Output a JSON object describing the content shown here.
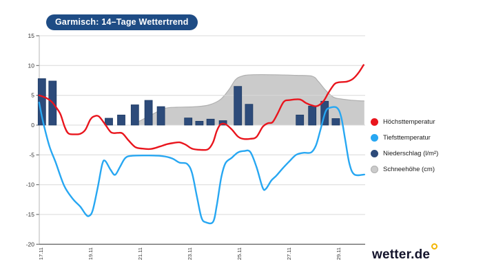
{
  "title_badge": "Garmisch: 14–Tage Wettertrend",
  "badge_color": "#1e4c85",
  "logo": {
    "text": "wetter.de",
    "ring_color": "#f2b400"
  },
  "legend": [
    {
      "label": "Höchsttemperatur",
      "color": "#e9151d"
    },
    {
      "label": "Tiefsttemperatur",
      "color": "#27a7f2"
    },
    {
      "label": "Niederschlag (l/m²)",
      "color": "#2d4b7a"
    },
    {
      "label": "Schneehöhe (cm)",
      "color": "#cbcbcb",
      "border": "#b0b0b0"
    }
  ],
  "chart_data": {
    "type": "line+bar+area",
    "x_axis": {
      "labels": [
        "17.11",
        "19.11",
        "21.11",
        "23.11",
        "25.11",
        "27.11",
        "29.11"
      ],
      "label_days": [
        17,
        19,
        21,
        23,
        25,
        27,
        29
      ]
    },
    "y_axis": {
      "min": -20,
      "max": 15,
      "ticks": [
        15,
        10,
        5,
        0,
        -5,
        -10,
        -15,
        -20
      ]
    },
    "grid": "horizontal-only",
    "legend_position": "right",
    "series": [
      {
        "name": "Schneehöhe (cm)",
        "key": "snow-area-series",
        "type": "area",
        "color": "#cbcbcb",
        "border": "#b0b0b0",
        "points": [
          [
            20.65,
            0
          ],
          [
            21.0,
            0.7
          ],
          [
            21.5,
            1.8
          ],
          [
            22.0,
            2.8
          ],
          [
            22.5,
            3.0
          ],
          [
            23.3,
            3.1
          ],
          [
            23.8,
            3.4
          ],
          [
            24.25,
            4.3
          ],
          [
            24.6,
            6.0
          ],
          [
            24.85,
            7.6
          ],
          [
            25.1,
            8.2
          ],
          [
            25.5,
            8.45
          ],
          [
            26.5,
            8.45
          ],
          [
            27.3,
            8.35
          ],
          [
            27.95,
            8.2
          ],
          [
            28.2,
            7.3
          ],
          [
            28.5,
            5.8
          ],
          [
            28.8,
            4.7
          ],
          [
            29.1,
            4.4
          ],
          [
            29.6,
            4.15
          ],
          [
            30.05,
            4.05
          ]
        ]
      },
      {
        "name": "Niederschlag (l/m²)",
        "key": "precip-bars-series",
        "type": "bar",
        "color": "#2d4b7a",
        "border": "#1d3a64",
        "points": [
          [
            17.05,
            7.8
          ],
          [
            17.48,
            7.4
          ],
          [
            19.75,
            1.15
          ],
          [
            20.25,
            1.7
          ],
          [
            20.8,
            3.4
          ],
          [
            21.35,
            4.15
          ],
          [
            21.85,
            3.1
          ],
          [
            22.95,
            1.2
          ],
          [
            23.4,
            0.65
          ],
          [
            23.85,
            1.0
          ],
          [
            24.35,
            0.75
          ],
          [
            24.95,
            6.5
          ],
          [
            25.4,
            3.5
          ],
          [
            27.45,
            1.7
          ],
          [
            27.95,
            3.2
          ],
          [
            28.45,
            4.0
          ],
          [
            28.9,
            1.1
          ]
        ]
      },
      {
        "name": "Höchsttemperatur",
        "key": "max-temp-line-series",
        "type": "line",
        "color": "#e9151d",
        "points": [
          [
            16.94,
            5.0
          ],
          [
            17.2,
            4.6
          ],
          [
            17.45,
            3.9
          ],
          [
            17.62,
            3.0
          ],
          [
            17.8,
            1.8
          ],
          [
            17.97,
            -0.3
          ],
          [
            18.12,
            -1.4
          ],
          [
            18.35,
            -1.55
          ],
          [
            18.6,
            -1.45
          ],
          [
            18.8,
            -0.8
          ],
          [
            19.0,
            0.9
          ],
          [
            19.15,
            1.45
          ],
          [
            19.35,
            1.45
          ],
          [
            19.62,
            0.0
          ],
          [
            19.85,
            -1.25
          ],
          [
            20.1,
            -1.3
          ],
          [
            20.3,
            -1.4
          ],
          [
            20.55,
            -2.6
          ],
          [
            20.82,
            -3.7
          ],
          [
            21.1,
            -3.95
          ],
          [
            21.45,
            -4.0
          ],
          [
            21.8,
            -3.6
          ],
          [
            22.1,
            -3.2
          ],
          [
            22.35,
            -3.0
          ],
          [
            22.6,
            -2.9
          ],
          [
            22.85,
            -3.3
          ],
          [
            23.1,
            -3.95
          ],
          [
            23.45,
            -4.15
          ],
          [
            23.75,
            -4.05
          ],
          [
            23.95,
            -2.9
          ],
          [
            24.1,
            -1.0
          ],
          [
            24.25,
            0.1
          ],
          [
            24.45,
            0.15
          ],
          [
            24.7,
            -0.7
          ],
          [
            24.95,
            -1.9
          ],
          [
            25.15,
            -2.3
          ],
          [
            25.45,
            -2.3
          ],
          [
            25.7,
            -2.0
          ],
          [
            25.95,
            -0.3
          ],
          [
            26.15,
            0.3
          ],
          [
            26.35,
            0.5
          ],
          [
            26.55,
            1.9
          ],
          [
            26.8,
            3.9
          ],
          [
            27.05,
            4.2
          ],
          [
            27.45,
            4.3
          ],
          [
            27.7,
            3.7
          ],
          [
            27.95,
            3.3
          ],
          [
            28.15,
            3.2
          ],
          [
            28.4,
            4.0
          ],
          [
            28.6,
            5.4
          ],
          [
            28.85,
            6.9
          ],
          [
            29.05,
            7.2
          ],
          [
            29.35,
            7.3
          ],
          [
            29.6,
            7.8
          ],
          [
            29.82,
            8.8
          ],
          [
            30.02,
            10.1
          ]
        ]
      },
      {
        "name": "Tiefsttemperatur",
        "key": "min-temp-line-series",
        "type": "line",
        "color": "#27a7f2",
        "points": [
          [
            16.94,
            3.8
          ],
          [
            17.1,
            0.5
          ],
          [
            17.35,
            -3.5
          ],
          [
            17.6,
            -6.2
          ],
          [
            17.95,
            -10.2
          ],
          [
            18.3,
            -12.4
          ],
          [
            18.6,
            -13.7
          ],
          [
            18.82,
            -15.0
          ],
          [
            18.95,
            -15.25
          ],
          [
            19.1,
            -14.3
          ],
          [
            19.3,
            -10.5
          ],
          [
            19.48,
            -6.6
          ],
          [
            19.6,
            -6.0
          ],
          [
            19.82,
            -7.5
          ],
          [
            20.0,
            -8.35
          ],
          [
            20.2,
            -7.0
          ],
          [
            20.42,
            -5.5
          ],
          [
            20.7,
            -5.15
          ],
          [
            21.3,
            -5.1
          ],
          [
            21.9,
            -5.2
          ],
          [
            22.3,
            -5.6
          ],
          [
            22.6,
            -6.3
          ],
          [
            22.9,
            -6.5
          ],
          [
            23.1,
            -8.0
          ],
          [
            23.3,
            -12.0
          ],
          [
            23.48,
            -15.5
          ],
          [
            23.65,
            -16.3
          ],
          [
            23.95,
            -16.25
          ],
          [
            24.1,
            -13.5
          ],
          [
            24.28,
            -8.8
          ],
          [
            24.45,
            -6.4
          ],
          [
            24.7,
            -5.5
          ],
          [
            24.95,
            -4.6
          ],
          [
            25.2,
            -4.35
          ],
          [
            25.45,
            -4.5
          ],
          [
            25.7,
            -7.0
          ],
          [
            25.95,
            -10.5
          ],
          [
            26.08,
            -10.7
          ],
          [
            26.3,
            -9.3
          ],
          [
            26.5,
            -8.5
          ],
          [
            26.75,
            -7.3
          ],
          [
            27.0,
            -6.2
          ],
          [
            27.3,
            -5.0
          ],
          [
            27.6,
            -4.65
          ],
          [
            27.9,
            -4.6
          ],
          [
            28.1,
            -3.4
          ],
          [
            28.28,
            -0.8
          ],
          [
            28.48,
            2.2
          ],
          [
            28.65,
            2.9
          ],
          [
            28.95,
            2.9
          ],
          [
            29.12,
            1.3
          ],
          [
            29.28,
            -2.5
          ],
          [
            29.45,
            -6.5
          ],
          [
            29.65,
            -8.3
          ],
          [
            30.05,
            -8.3
          ]
        ]
      }
    ]
  }
}
